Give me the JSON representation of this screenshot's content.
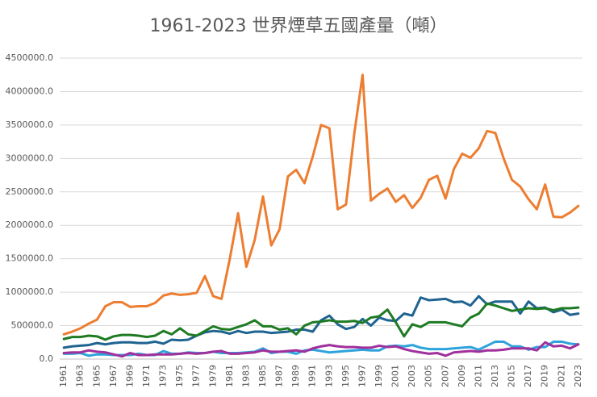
{
  "chart_data": {
    "type": "line",
    "title": "1961-2023 世界煙草五國產量（噸）",
    "categories": [
      1961,
      null,
      1963,
      null,
      1965,
      null,
      1967,
      null,
      1969,
      null,
      1971,
      null,
      1973,
      null,
      1975,
      null,
      1977,
      null,
      1979,
      null,
      1981,
      null,
      1983,
      null,
      1985,
      null,
      1987,
      null,
      1989,
      null,
      1991,
      null,
      1993,
      null,
      1995,
      null,
      1997,
      null,
      1999,
      null,
      2001,
      null,
      2003,
      null,
      2005,
      null,
      2007,
      null,
      2009,
      null,
      2011,
      null,
      2013,
      null,
      2015,
      null,
      2017,
      null,
      2019,
      null,
      2021,
      null,
      2023
    ],
    "series": [
      {
        "color": "#ED7D31",
        "values": [
          370000,
          410000,
          460000,
          530000,
          590000,
          790000,
          850000,
          850000,
          780000,
          790000,
          790000,
          840000,
          950000,
          980000,
          960000,
          970000,
          990000,
          1240000,
          940000,
          900000,
          1500000,
          2180000,
          1380000,
          1780000,
          2430000,
          1700000,
          1940000,
          2730000,
          2830000,
          2630000,
          3030000,
          3500000,
          3450000,
          2240000,
          2310000,
          3370000,
          4250000,
          2370000,
          2470000,
          2550000,
          2350000,
          2450000,
          2260000,
          2410000,
          2680000,
          2740000,
          2400000,
          2840000,
          3070000,
          3010000,
          3150000,
          3410000,
          3380000,
          3000000,
          2680000,
          2580000,
          2390000,
          2240000,
          2610000,
          2130000,
          2120000,
          2190000,
          2290000
        ]
      },
      {
        "color": "#1F6391",
        "values": [
          170000,
          190000,
          200000,
          210000,
          240000,
          220000,
          240000,
          250000,
          250000,
          240000,
          240000,
          260000,
          230000,
          290000,
          280000,
          290000,
          350000,
          400000,
          420000,
          410000,
          380000,
          420000,
          390000,
          410000,
          410000,
          390000,
          400000,
          410000,
          440000,
          440000,
          410000,
          580000,
          650000,
          520000,
          450000,
          480000,
          600000,
          500000,
          620000,
          580000,
          570000,
          680000,
          650000,
          920000,
          880000,
          890000,
          900000,
          850000,
          860000,
          800000,
          940000,
          820000,
          860000,
          860000,
          860000,
          680000,
          860000,
          760000,
          770000,
          700000,
          740000,
          660000,
          680000
        ]
      },
      {
        "color": "#1E7B23",
        "values": [
          300000,
          330000,
          330000,
          350000,
          340000,
          290000,
          340000,
          360000,
          360000,
          350000,
          330000,
          350000,
          420000,
          370000,
          460000,
          370000,
          350000,
          420000,
          490000,
          450000,
          440000,
          480000,
          520000,
          580000,
          490000,
          490000,
          440000,
          460000,
          370000,
          500000,
          550000,
          560000,
          580000,
          560000,
          560000,
          570000,
          540000,
          620000,
          640000,
          740000,
          550000,
          340000,
          520000,
          480000,
          550000,
          550000,
          550000,
          520000,
          490000,
          620000,
          680000,
          830000,
          800000,
          760000,
          720000,
          740000,
          760000,
          750000,
          760000,
          730000,
          760000,
          760000,
          770000
        ]
      },
      {
        "color": "#2EA3DB",
        "values": [
          80000,
          80000,
          90000,
          50000,
          70000,
          70000,
          60000,
          60000,
          60000,
          80000,
          60000,
          60000,
          120000,
          80000,
          80000,
          100000,
          90000,
          90000,
          110000,
          90000,
          90000,
          90000,
          100000,
          110000,
          160000,
          90000,
          110000,
          110000,
          80000,
          130000,
          140000,
          120000,
          100000,
          110000,
          120000,
          130000,
          140000,
          130000,
          130000,
          190000,
          200000,
          190000,
          210000,
          170000,
          150000,
          150000,
          150000,
          160000,
          170000,
          180000,
          140000,
          200000,
          260000,
          260000,
          190000,
          190000,
          140000,
          180000,
          180000,
          260000,
          260000,
          230000,
          220000
        ]
      },
      {
        "color": "#A0309C",
        "values": [
          90000,
          100000,
          100000,
          130000,
          110000,
          100000,
          70000,
          40000,
          90000,
          60000,
          60000,
          70000,
          70000,
          70000,
          80000,
          90000,
          80000,
          90000,
          110000,
          120000,
          80000,
          80000,
          90000,
          100000,
          130000,
          110000,
          110000,
          120000,
          130000,
          110000,
          160000,
          190000,
          210000,
          190000,
          180000,
          180000,
          170000,
          170000,
          200000,
          180000,
          190000,
          150000,
          120000,
          100000,
          80000,
          90000,
          50000,
          100000,
          110000,
          120000,
          110000,
          130000,
          130000,
          140000,
          160000,
          160000,
          160000,
          130000,
          250000,
          190000,
          200000,
          160000,
          220000
        ]
      }
    ],
    "ylim": [
      0,
      4500000
    ],
    "yticks": [
      {
        "value": 0,
        "label": "0.0"
      },
      {
        "value": 500000,
        "label": "500000.0"
      },
      {
        "value": 1000000,
        "label": "1000000.0"
      },
      {
        "value": 1500000,
        "label": "1500000.0"
      },
      {
        "value": 2000000,
        "label": "2000000.0"
      },
      {
        "value": 2500000,
        "label": "2500000.0"
      },
      {
        "value": 3000000,
        "label": "3000000.0"
      },
      {
        "value": 3500000,
        "label": "3500000.0"
      },
      {
        "value": 4000000,
        "label": "4000000.0"
      },
      {
        "value": 4500000,
        "label": "4500000.0"
      }
    ],
    "grid": true
  }
}
